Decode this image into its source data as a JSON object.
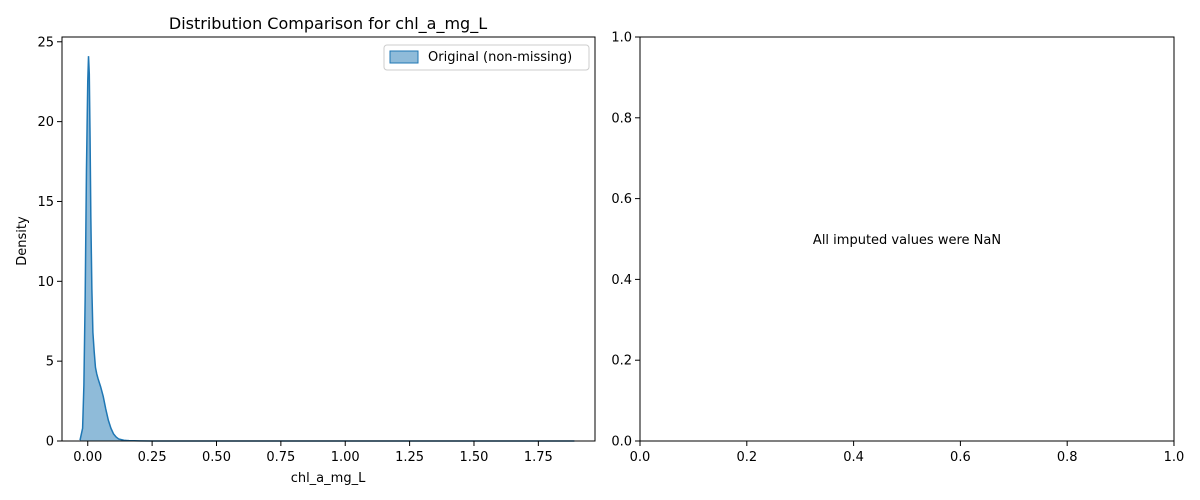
{
  "colors": {
    "series": "#1f77b4",
    "series_fill": "#1f77b4",
    "axis": "#000000",
    "legend_border": "#cccccc"
  },
  "chart_data": [
    {
      "type": "area",
      "title": "Distribution Comparison for chl_a_mg_L",
      "xlabel": "chl_a_mg_L",
      "ylabel": "Density",
      "xlim": [
        -0.1,
        1.97
      ],
      "ylim": [
        0,
        25.3
      ],
      "grid": false,
      "legend_position": "top-right",
      "x_ticks": [
        0.0,
        0.25,
        0.5,
        0.75,
        1.0,
        1.25,
        1.5,
        1.75
      ],
      "x_tick_labels": [
        "0.00",
        "0.25",
        "0.50",
        "0.75",
        "1.00",
        "1.25",
        "1.50",
        "1.75"
      ],
      "y_ticks": [
        0,
        5,
        10,
        15,
        20,
        25
      ],
      "y_tick_labels": [
        "0",
        "5",
        "10",
        "15",
        "20",
        "25"
      ],
      "series": [
        {
          "name": "Original (non-missing)",
          "x": [
            -0.03,
            -0.02,
            -0.015,
            -0.01,
            -0.005,
            0.0,
            0.003,
            0.006,
            0.009,
            0.012,
            0.016,
            0.02,
            0.025,
            0.03,
            0.035,
            0.04,
            0.05,
            0.06,
            0.07,
            0.08,
            0.09,
            0.1,
            0.11,
            0.12,
            0.14,
            0.16,
            0.2,
            0.25,
            0.3,
            0.5,
            1.0,
            1.5,
            1.89
          ],
          "y": [
            0.05,
            0.8,
            3.5,
            9.0,
            17.0,
            22.5,
            24.1,
            23.0,
            19.0,
            14.0,
            9.5,
            6.8,
            5.6,
            4.6,
            4.2,
            3.9,
            3.4,
            2.8,
            2.0,
            1.3,
            0.8,
            0.45,
            0.25,
            0.13,
            0.05,
            0.02,
            0.005,
            0.002,
            0.001,
            0.0,
            0.0,
            0.0,
            0.0
          ]
        }
      ]
    },
    {
      "type": "scatter",
      "title": "",
      "xlabel": "",
      "ylabel": "",
      "xlim": [
        0,
        1
      ],
      "ylim": [
        0,
        1
      ],
      "grid": false,
      "x_ticks": [
        0.0,
        0.2,
        0.4,
        0.6,
        0.8,
        1.0
      ],
      "x_tick_labels": [
        "0.0",
        "0.2",
        "0.4",
        "0.6",
        "0.8",
        "1.0"
      ],
      "y_ticks": [
        0.0,
        0.2,
        0.4,
        0.6,
        0.8,
        1.0
      ],
      "y_tick_labels": [
        "0.0",
        "0.2",
        "0.4",
        "0.6",
        "0.8",
        "1.0"
      ],
      "series": [],
      "annotations": [
        {
          "text": "All imputed values were NaN",
          "x": 0.5,
          "y": 0.5
        }
      ]
    }
  ]
}
